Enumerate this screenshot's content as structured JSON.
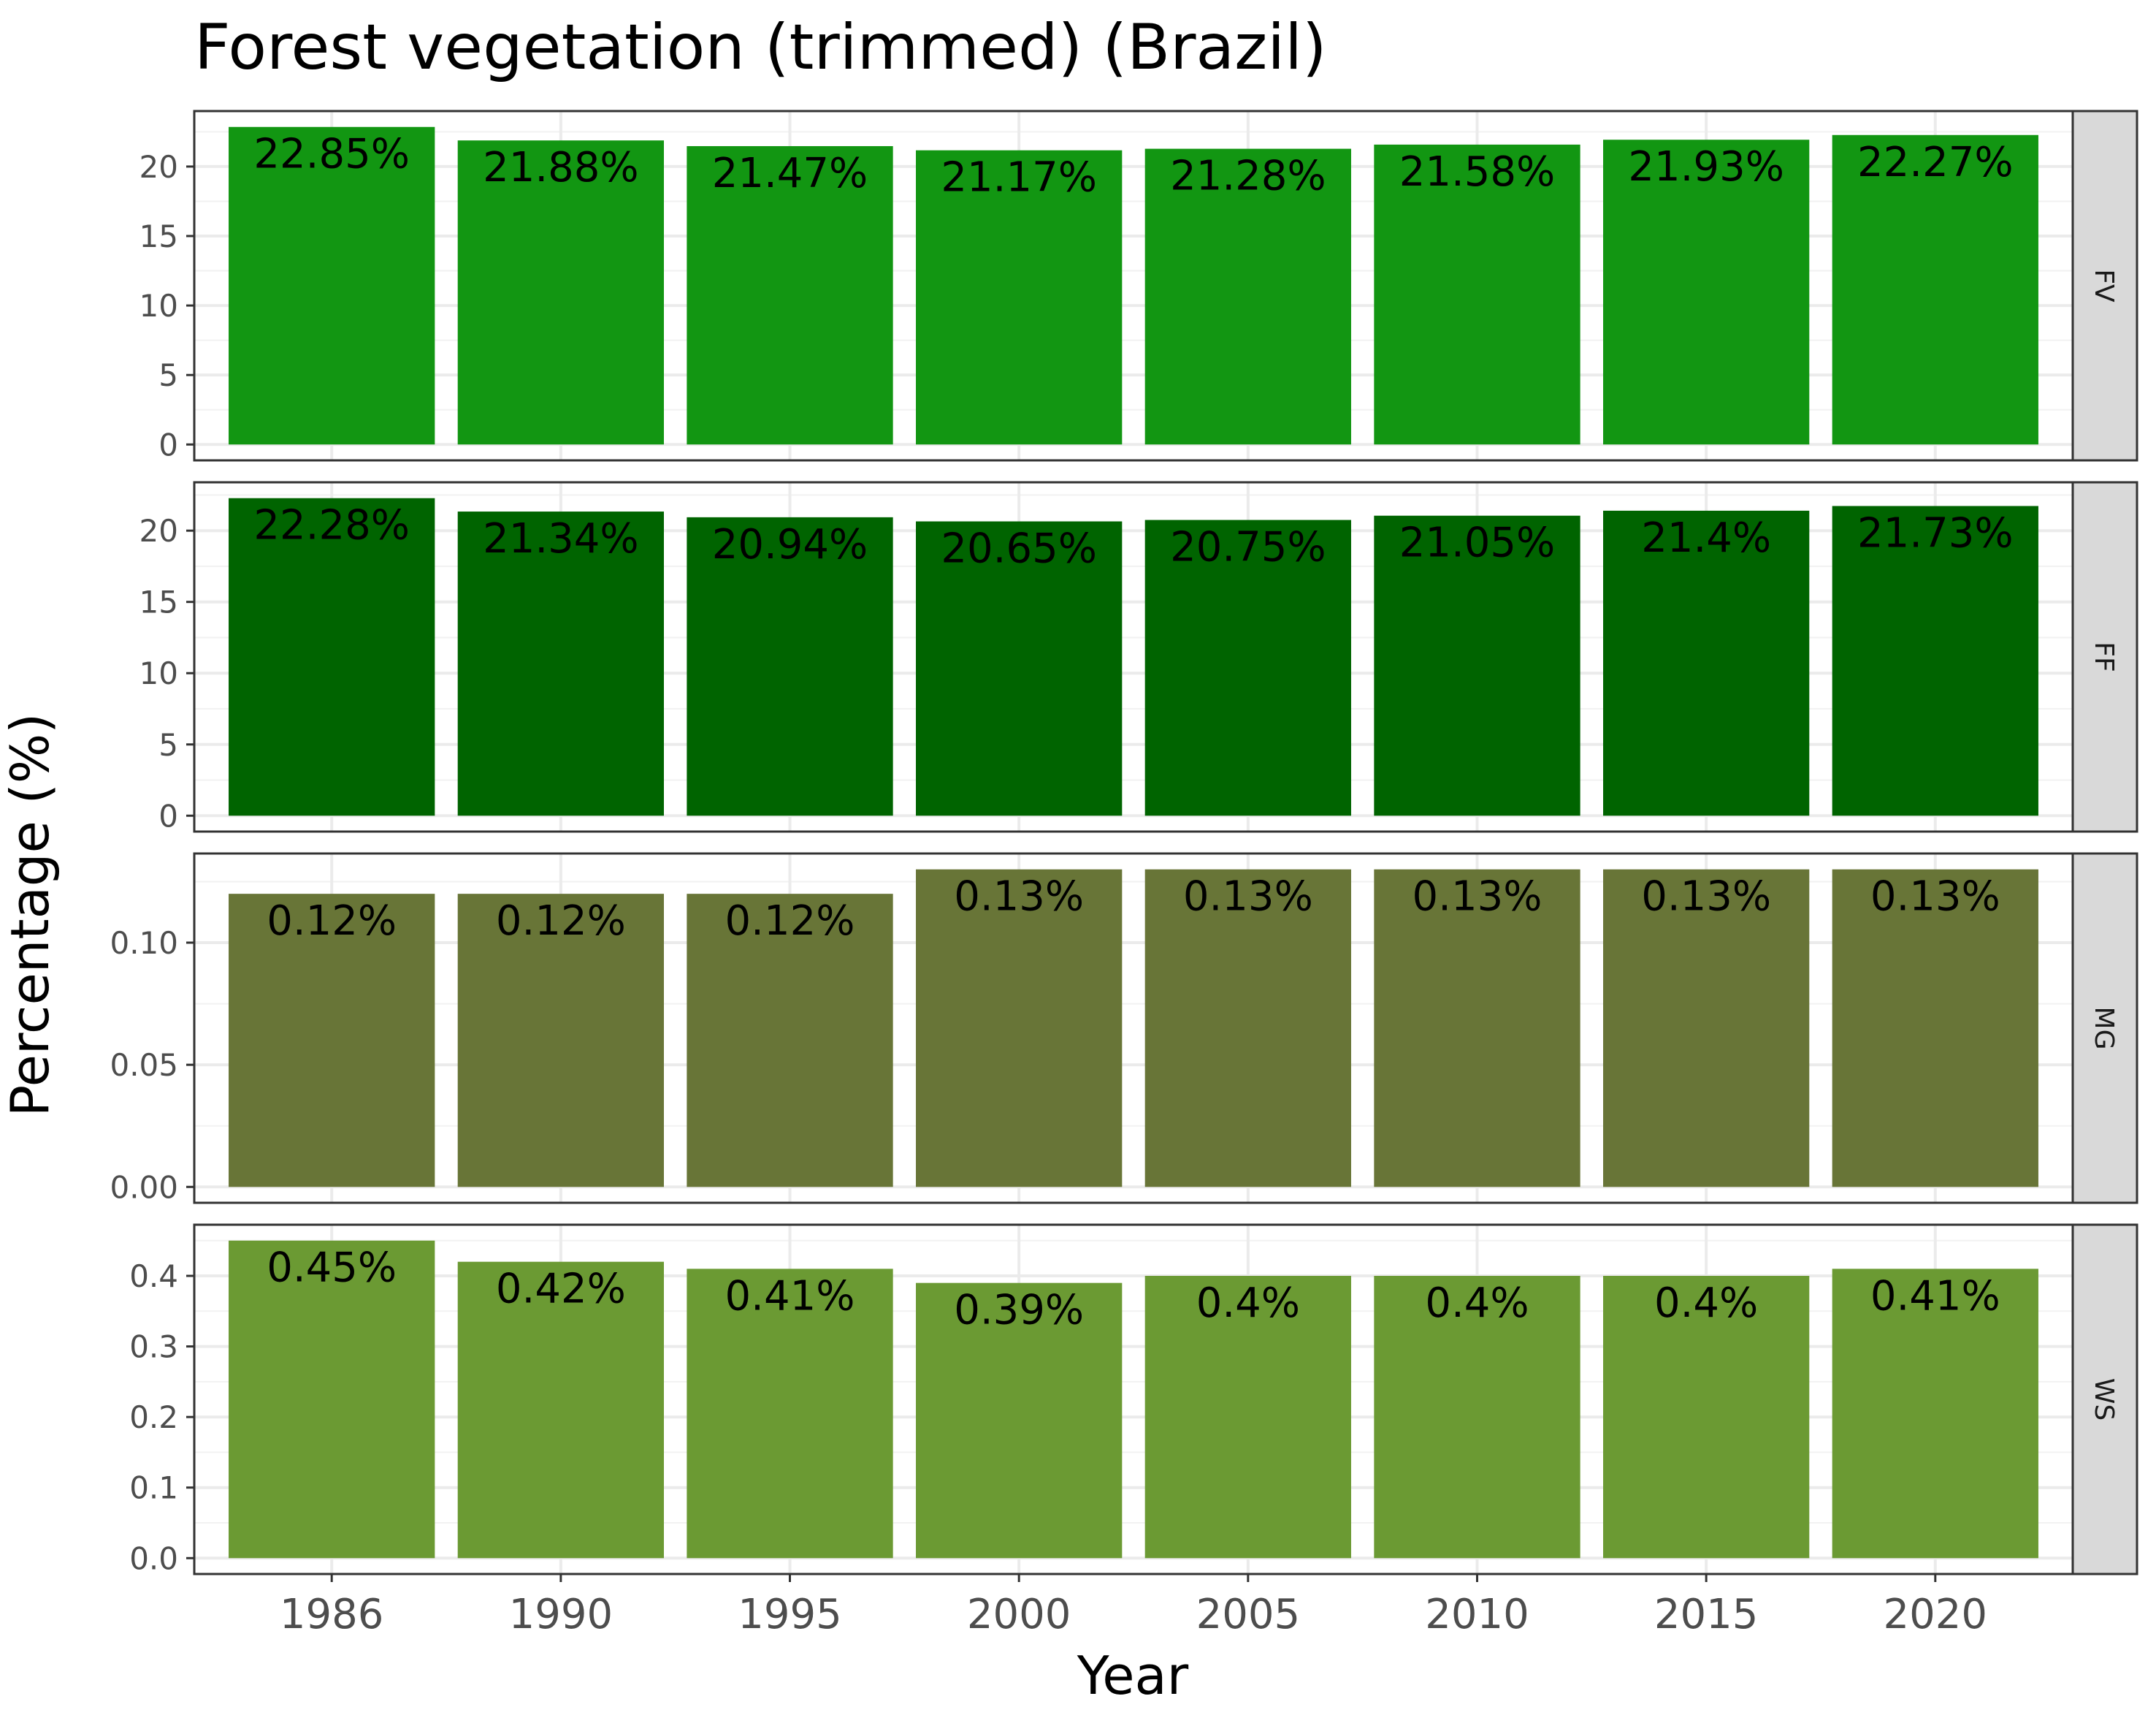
{
  "chart_data": {
    "type": "bar",
    "title": "Forest vegetation (trimmed) (Brazil)",
    "xlabel": "Year",
    "ylabel": "Percentage (%)",
    "categories": [
      "1986",
      "1990",
      "1995",
      "2000",
      "2005",
      "2010",
      "2015",
      "2020"
    ],
    "grid": true,
    "legend": "none",
    "panels": [
      {
        "strip": "FV",
        "color": "#129612",
        "values": [
          22.85,
          21.88,
          21.47,
          21.17,
          21.28,
          21.58,
          21.93,
          22.27
        ],
        "labels": [
          "22.85%",
          "21.88%",
          "21.47%",
          "21.17%",
          "21.28%",
          "21.58%",
          "21.93%",
          "22.27%"
        ],
        "ylim": [
          -1.1425,
          23.9925
        ],
        "yticks": [
          0,
          5,
          10,
          15,
          20
        ],
        "ytick_labels": [
          "0",
          "5",
          "10",
          "15",
          "20"
        ]
      },
      {
        "strip": "FF",
        "color": "#006400",
        "values": [
          22.28,
          21.34,
          20.94,
          20.65,
          20.75,
          21.05,
          21.4,
          21.73
        ],
        "labels": [
          "22.28%",
          "21.34%",
          "20.94%",
          "20.65%",
          "20.75%",
          "21.05%",
          "21.4%",
          "21.73%"
        ],
        "ylim": [
          -1.114,
          23.394
        ],
        "yticks": [
          0,
          5,
          10,
          15,
          20
        ],
        "ytick_labels": [
          "0",
          "5",
          "10",
          "15",
          "20"
        ]
      },
      {
        "strip": "MG",
        "color": "#687537",
        "values": [
          0.12,
          0.12,
          0.12,
          0.13,
          0.13,
          0.13,
          0.13,
          0.13
        ],
        "labels": [
          "0.12%",
          "0.12%",
          "0.12%",
          "0.13%",
          "0.13%",
          "0.13%",
          "0.13%",
          "0.13%"
        ],
        "ylim": [
          -0.0065,
          0.1365
        ],
        "yticks": [
          0,
          0.05,
          0.1
        ],
        "ytick_labels": [
          "0.00",
          "0.05",
          "0.10"
        ]
      },
      {
        "strip": "WS",
        "color": "#6b9a33",
        "values": [
          0.45,
          0.42,
          0.41,
          0.39,
          0.4,
          0.4,
          0.4,
          0.41
        ],
        "labels": [
          "0.45%",
          "0.42%",
          "0.41%",
          "0.39%",
          "0.4%",
          "0.4%",
          "0.4%",
          "0.41%"
        ],
        "ylim": [
          -0.0225,
          0.4725
        ],
        "yticks": [
          0,
          0.1,
          0.2,
          0.3,
          0.4
        ],
        "ytick_labels": [
          "0.0",
          "0.1",
          "0.2",
          "0.3",
          "0.4"
        ]
      }
    ]
  }
}
